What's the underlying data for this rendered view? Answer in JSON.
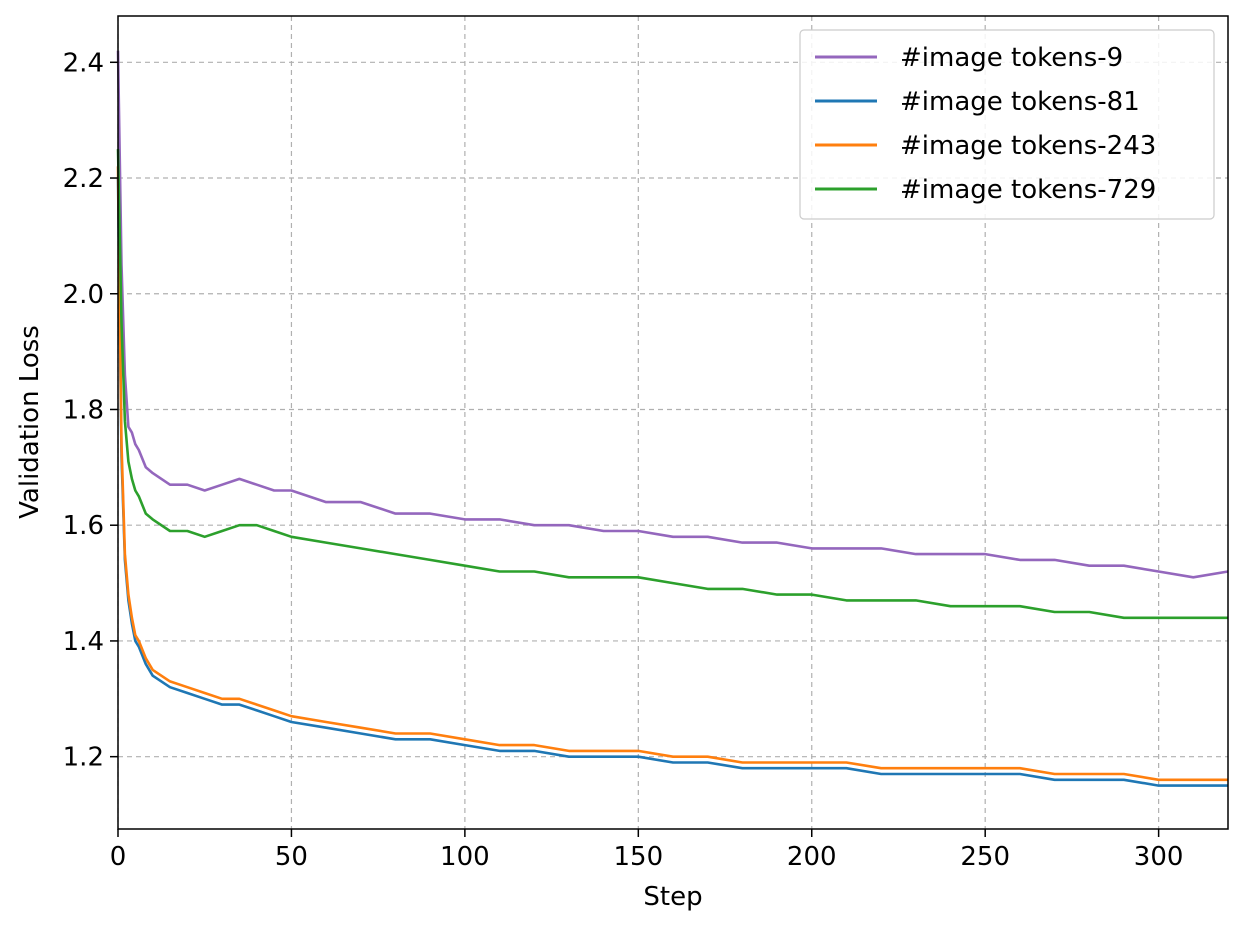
{
  "chart_data": {
    "type": "line",
    "title": "",
    "xlabel": "Step",
    "ylabel": "Validation Loss",
    "xlim": [
      0,
      320
    ],
    "ylim": [
      1.075,
      2.48
    ],
    "xticks": [
      0,
      50,
      100,
      150,
      200,
      250,
      300
    ],
    "yticks": [
      1.2,
      1.4,
      1.6,
      1.8,
      2.0,
      2.2,
      2.4
    ],
    "xtick_labels": [
      "0",
      "50",
      "100",
      "150",
      "200",
      "250",
      "300"
    ],
    "ytick_labels": [
      "1.2",
      "1.4",
      "1.6",
      "1.8",
      "2.0",
      "2.2",
      "2.4"
    ],
    "grid": true,
    "legend_position": "top-right",
    "series": [
      {
        "name": "#image tokens-9",
        "color": "#9467bd",
        "x": [
          0,
          1,
          2,
          3,
          4,
          5,
          6,
          8,
          10,
          15,
          20,
          25,
          30,
          35,
          40,
          45,
          50,
          60,
          70,
          80,
          90,
          100,
          110,
          120,
          130,
          140,
          150,
          160,
          170,
          180,
          190,
          200,
          210,
          220,
          230,
          240,
          250,
          260,
          270,
          280,
          290,
          300,
          310,
          320
        ],
        "values": [
          2.42,
          2.05,
          1.86,
          1.77,
          1.76,
          1.74,
          1.73,
          1.7,
          1.69,
          1.67,
          1.67,
          1.66,
          1.67,
          1.68,
          1.67,
          1.66,
          1.66,
          1.64,
          1.64,
          1.62,
          1.62,
          1.61,
          1.61,
          1.6,
          1.6,
          1.59,
          1.59,
          1.58,
          1.58,
          1.57,
          1.57,
          1.56,
          1.56,
          1.56,
          1.55,
          1.55,
          1.55,
          1.54,
          1.54,
          1.53,
          1.53,
          1.52,
          1.51,
          1.52
        ]
      },
      {
        "name": "#image tokens-81",
        "color": "#1f77b4",
        "x": [
          0,
          1,
          2,
          3,
          4,
          5,
          6,
          8,
          10,
          15,
          20,
          25,
          30,
          35,
          40,
          45,
          50,
          60,
          70,
          80,
          90,
          100,
          110,
          120,
          130,
          140,
          150,
          160,
          170,
          180,
          190,
          200,
          210,
          220,
          230,
          240,
          250,
          260,
          270,
          280,
          290,
          300,
          310,
          320
        ],
        "values": [
          2.2,
          1.72,
          1.54,
          1.47,
          1.43,
          1.4,
          1.39,
          1.36,
          1.34,
          1.32,
          1.31,
          1.3,
          1.29,
          1.29,
          1.28,
          1.27,
          1.26,
          1.25,
          1.24,
          1.23,
          1.23,
          1.22,
          1.21,
          1.21,
          1.2,
          1.2,
          1.2,
          1.19,
          1.19,
          1.18,
          1.18,
          1.18,
          1.18,
          1.17,
          1.17,
          1.17,
          1.17,
          1.17,
          1.16,
          1.16,
          1.16,
          1.15,
          1.15,
          1.15
        ]
      },
      {
        "name": "#image tokens-243",
        "color": "#ff7f0e",
        "x": [
          0,
          1,
          2,
          3,
          4,
          5,
          6,
          8,
          10,
          15,
          20,
          25,
          30,
          35,
          40,
          45,
          50,
          60,
          70,
          80,
          90,
          100,
          110,
          120,
          130,
          140,
          150,
          160,
          170,
          180,
          190,
          200,
          210,
          220,
          230,
          240,
          250,
          260,
          270,
          280,
          290,
          300,
          310,
          320
        ],
        "values": [
          2.22,
          1.74,
          1.55,
          1.48,
          1.44,
          1.41,
          1.4,
          1.37,
          1.35,
          1.33,
          1.32,
          1.31,
          1.3,
          1.3,
          1.29,
          1.28,
          1.27,
          1.26,
          1.25,
          1.24,
          1.24,
          1.23,
          1.22,
          1.22,
          1.21,
          1.21,
          1.21,
          1.2,
          1.2,
          1.19,
          1.19,
          1.19,
          1.19,
          1.18,
          1.18,
          1.18,
          1.18,
          1.18,
          1.17,
          1.17,
          1.17,
          1.16,
          1.16,
          1.16
        ]
      },
      {
        "name": "#image tokens-729",
        "color": "#2ca02c",
        "x": [
          0,
          1,
          2,
          3,
          4,
          5,
          6,
          8,
          10,
          15,
          20,
          25,
          30,
          35,
          40,
          45,
          50,
          60,
          70,
          80,
          90,
          100,
          110,
          120,
          130,
          140,
          150,
          160,
          170,
          180,
          190,
          200,
          210,
          220,
          230,
          240,
          250,
          260,
          270,
          280,
          290,
          300,
          310,
          320
        ],
        "values": [
          2.25,
          1.95,
          1.78,
          1.71,
          1.68,
          1.66,
          1.65,
          1.62,
          1.61,
          1.59,
          1.59,
          1.58,
          1.59,
          1.6,
          1.6,
          1.59,
          1.58,
          1.57,
          1.56,
          1.55,
          1.54,
          1.53,
          1.52,
          1.52,
          1.51,
          1.51,
          1.51,
          1.5,
          1.49,
          1.49,
          1.48,
          1.48,
          1.47,
          1.47,
          1.47,
          1.46,
          1.46,
          1.46,
          1.45,
          1.45,
          1.44,
          1.44,
          1.44,
          1.44
        ]
      }
    ]
  }
}
